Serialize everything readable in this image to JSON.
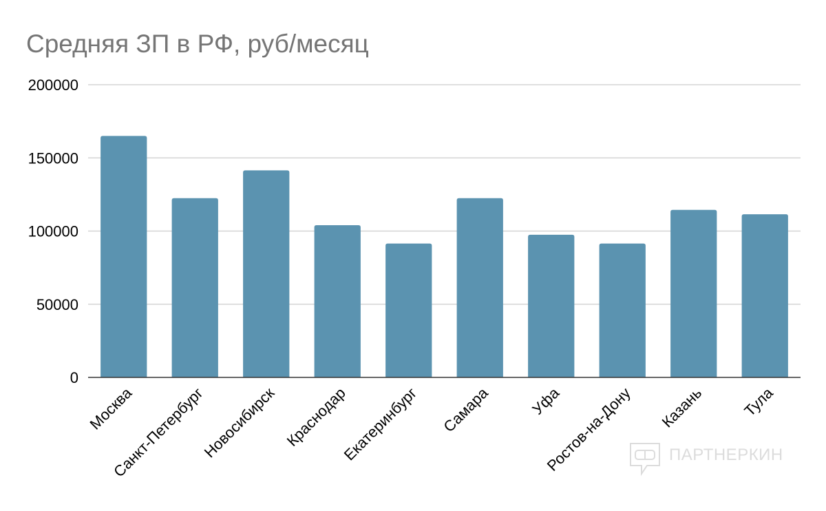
{
  "chart_data": {
    "type": "bar",
    "title": "Средняя ЗП в РФ, руб/месяц",
    "categories": [
      "Москва",
      "Санкт-Петербург",
      "Новосибирск",
      "Краснодар",
      "Екатеринбург",
      "Самара",
      "Уфа",
      "Ростов-на-Дону",
      "Казань",
      "Тула"
    ],
    "values": [
      165000,
      122500,
      141500,
      104000,
      91500,
      122500,
      97500,
      91500,
      114500,
      111500
    ],
    "ylim": [
      0,
      200000
    ],
    "yticks": [
      "0",
      "50000",
      "100000",
      "150000",
      "200000"
    ],
    "grid": true,
    "legend": "none",
    "bar_color": "#5b93b0"
  },
  "watermark": {
    "text": "ПАРТНЕРКИН",
    "icon": "vr-headset-speech-bubble-icon"
  }
}
